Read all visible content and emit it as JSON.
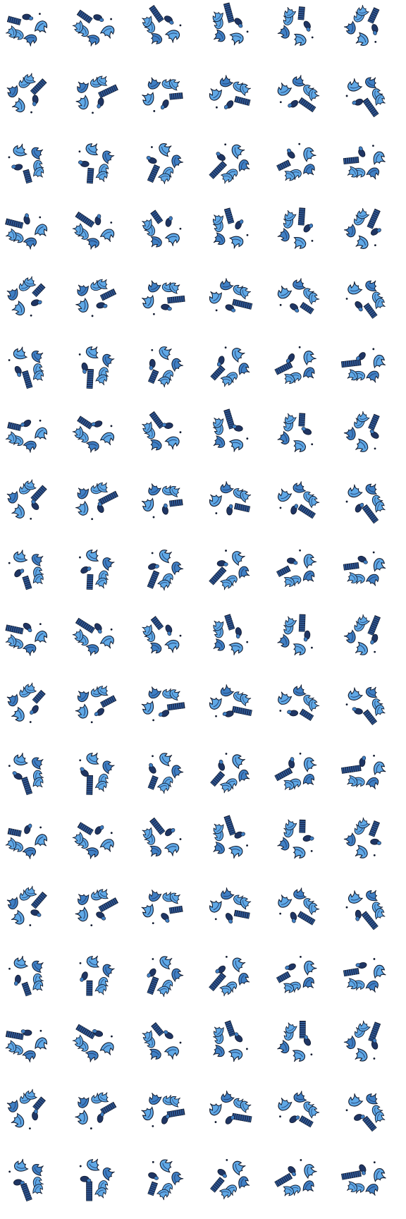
{
  "sheet": {
    "rows": 18,
    "columns": 6,
    "frame_count": 108,
    "background_color": "#ffffff"
  },
  "palette": {
    "light_blue": "#5fa8e6",
    "mid_blue": "#3f7fc4",
    "dark_navy": "#1f3563",
    "outline": "#111a2e"
  },
  "figure": {
    "parts": [
      "small-cluster",
      "leaf-left",
      "leaf-mid",
      "leaf-right",
      "striped-block",
      "dot"
    ],
    "rotation_steps_per_row": 6
  }
}
